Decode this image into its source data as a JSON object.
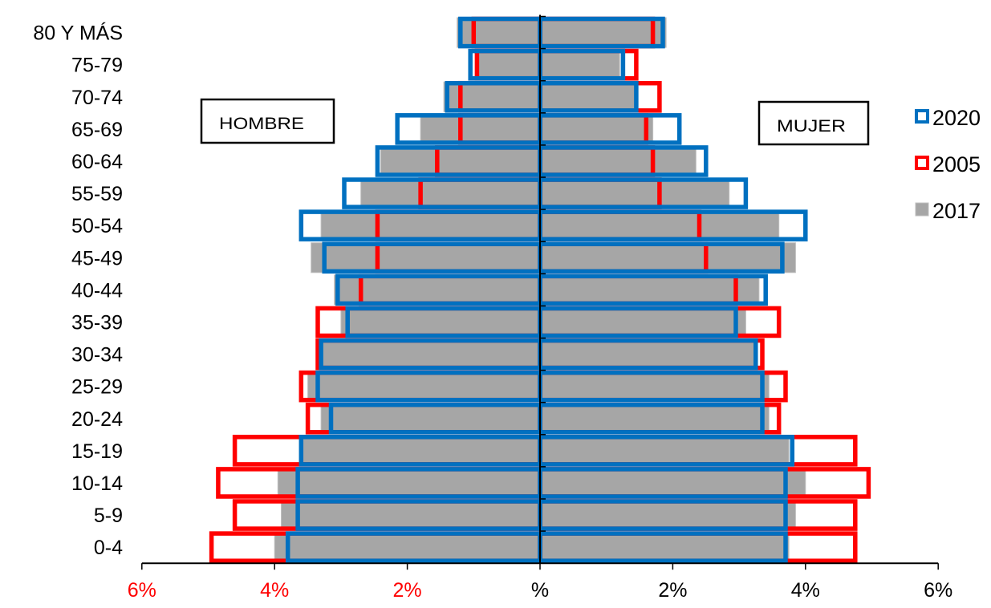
{
  "chart_data": {
    "type": "bar",
    "orientation": "horizontal",
    "layout": "population-pyramid",
    "categories": [
      "0-4",
      "5-9",
      "10-14",
      "15-19",
      "20-24",
      "25-29",
      "30-34",
      "35-39",
      "40-44",
      "45-49",
      "50-54",
      "55-59",
      "60-64",
      "65-69",
      "70-74",
      "75-79",
      "80 Y MÁS"
    ],
    "labels": {
      "left": "HOMBRE",
      "right": "MUJER"
    },
    "x_ticks": [
      "6%",
      "4%",
      "2%",
      "%",
      "2%",
      "4%",
      "6%"
    ],
    "x_tick_colors": [
      "#ff0000",
      "#ff0000",
      "#ff0000",
      "#000000",
      "#000000",
      "#000000",
      "#000000"
    ],
    "xlim": [
      -6,
      6
    ],
    "series": [
      {
        "name": "2017",
        "style": "filled",
        "color": "#a6a6a6",
        "hombre": [
          4.0,
          3.9,
          3.95,
          3.6,
          3.3,
          3.5,
          3.3,
          3.0,
          3.1,
          3.45,
          3.3,
          2.7,
          2.4,
          1.8,
          1.45,
          0.95,
          1.25
        ],
        "mujer": [
          3.75,
          3.85,
          4.0,
          3.75,
          3.45,
          3.45,
          3.25,
          3.1,
          3.3,
          3.85,
          3.6,
          2.85,
          2.35,
          1.7,
          1.45,
          1.2,
          1.9
        ]
      },
      {
        "name": "2005",
        "style": "outline",
        "color": "#ff0000",
        "hombre": [
          4.95,
          4.6,
          4.85,
          4.6,
          3.5,
          3.6,
          3.35,
          3.35,
          2.7,
          2.45,
          2.45,
          1.8,
          1.55,
          1.2,
          1.2,
          0.95,
          1.0
        ],
        "mujer": [
          4.75,
          4.75,
          4.95,
          4.75,
          3.6,
          3.7,
          3.35,
          3.6,
          2.95,
          2.5,
          2.4,
          1.8,
          1.7,
          1.6,
          1.8,
          1.45,
          1.7
        ]
      },
      {
        "name": "2020",
        "style": "outline",
        "color": "#0070c0",
        "hombre": [
          3.8,
          3.65,
          3.65,
          3.6,
          3.15,
          3.35,
          3.3,
          2.9,
          3.05,
          3.25,
          3.6,
          2.95,
          2.45,
          2.15,
          1.4,
          1.05,
          1.2
        ],
        "mujer": [
          3.7,
          3.7,
          3.7,
          3.8,
          3.35,
          3.35,
          3.25,
          2.95,
          3.4,
          3.65,
          4.0,
          3.1,
          2.5,
          2.1,
          1.45,
          1.25,
          1.85
        ]
      }
    ],
    "legend": {
      "position": "right",
      "order": [
        "2020",
        "2005",
        "2017"
      ]
    },
    "grid": false
  }
}
